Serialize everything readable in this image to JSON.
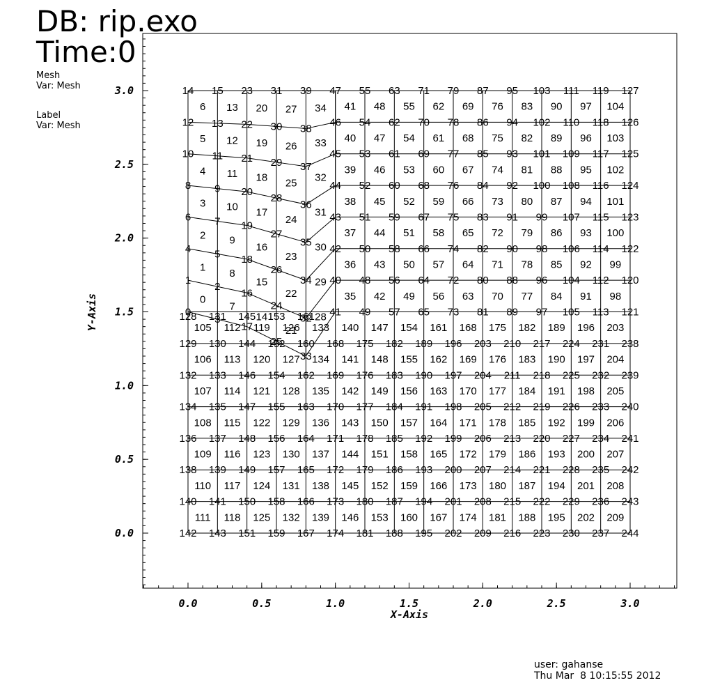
{
  "header": {
    "db": "DB: rip.exo",
    "time": "Time:0"
  },
  "legend": {
    "mesh_title": "Mesh",
    "mesh_var": "Var: Mesh",
    "label_title": "Label",
    "label_var": "Var: Mesh"
  },
  "footer": {
    "user": "user: gahanse",
    "date": "Thu Mar  8 10:15:55 2012"
  },
  "chart_data": {
    "type": "mesh",
    "xlabel": "X-Axis",
    "ylabel": "Y-Axis",
    "xlim": [
      -0.3,
      3.3
    ],
    "ylim": [
      -0.38,
      3.38
    ],
    "x_ticks": [
      0.0,
      0.5,
      1.0,
      1.5,
      2.0,
      2.5,
      3.0
    ],
    "x_tick_labels": [
      "0.0",
      "0.5",
      "1.0",
      "1.5",
      "2.0",
      "2.5",
      "3.0"
    ],
    "y_ticks": [
      0.0,
      0.5,
      1.0,
      1.5,
      2.0,
      2.5,
      3.0
    ],
    "y_tick_labels": [
      "0.0",
      "0.5",
      "1.0",
      "1.5",
      "2.0",
      "2.5",
      "3.0"
    ],
    "blocks": [
      {
        "name": "upper-left",
        "x": [
          0.0,
          0.2,
          0.4,
          0.6,
          0.8,
          1.0
        ],
        "bottom_y": [
          1.5,
          1.45,
          1.4,
          1.3,
          1.2,
          1.5
        ],
        "top_y": 3.0,
        "rows": 7,
        "cell_start": 0,
        "cell_order": "column-major-bottom-up"
      },
      {
        "name": "upper-right",
        "x": [
          1.0,
          1.2,
          1.4,
          1.6,
          1.8,
          2.0,
          2.2,
          2.4,
          2.6,
          2.8,
          3.0
        ],
        "bottom_y": 1.5,
        "top_y": 3.0,
        "rows": 7,
        "cell_start": 35,
        "cell_order": "column-major-bottom-up"
      },
      {
        "name": "lower",
        "x": [
          0.0,
          0.2,
          0.4,
          0.6,
          0.8,
          1.0,
          1.2,
          1.4,
          1.6,
          1.8,
          2.0,
          2.2,
          2.4,
          2.6,
          2.8,
          3.0
        ],
        "bottom_y": 0.0,
        "top_y": 1.5,
        "rows": 7,
        "cell_start": 105,
        "cell_order": "column-major-top-down"
      }
    ],
    "node_columns": [
      {
        "x": 0.0,
        "labels": [
          0,
          1,
          4,
          6,
          8,
          10,
          12,
          14,
          128,
          129,
          132,
          134,
          136,
          138,
          140,
          142
        ]
      },
      {
        "x": 0.2,
        "labels": [
          3,
          2,
          5,
          7,
          9,
          11,
          13,
          15,
          131,
          130,
          133,
          135,
          137,
          139,
          141,
          143
        ]
      },
      {
        "x": 0.4,
        "labels": [
          17,
          16,
          18,
          19,
          20,
          21,
          22,
          23,
          145,
          144,
          146,
          147,
          148,
          149,
          150,
          151
        ]
      },
      {
        "x": 0.6,
        "labels": [
          25,
          24,
          26,
          27,
          28,
          29,
          30,
          31,
          153,
          152,
          154,
          155,
          156,
          157,
          158,
          159
        ]
      },
      {
        "x": 0.8,
        "labels": [
          33,
          32,
          34,
          35,
          36,
          37,
          38,
          39,
          161,
          160,
          162,
          163,
          164,
          165,
          166,
          167
        ]
      },
      {
        "x": 1.0,
        "labels": [
          41,
          40,
          42,
          43,
          44,
          45,
          46,
          47,
          168,
          169,
          170,
          171,
          172,
          173,
          174
        ]
      },
      {
        "x": 1.2,
        "labels": [
          49,
          48,
          50,
          51,
          52,
          53,
          54,
          55,
          175,
          176,
          177,
          178,
          179,
          180,
          181
        ]
      },
      {
        "x": 1.4,
        "labels": [
          57,
          56,
          58,
          59,
          60,
          61,
          62,
          63,
          182,
          183,
          184,
          185,
          186,
          187,
          188
        ]
      },
      {
        "x": 1.6,
        "labels": [
          65,
          64,
          66,
          67,
          68,
          69,
          70,
          71,
          189,
          190,
          191,
          192,
          193,
          194,
          195
        ]
      },
      {
        "x": 1.8,
        "labels": [
          73,
          72,
          74,
          75,
          76,
          77,
          78,
          79,
          196,
          197,
          198,
          199,
          200,
          201,
          202
        ]
      },
      {
        "x": 2.0,
        "labels": [
          81,
          80,
          82,
          83,
          84,
          85,
          86,
          87,
          203,
          204,
          205,
          206,
          207,
          208,
          209
        ]
      },
      {
        "x": 2.2,
        "labels": [
          89,
          88,
          90,
          91,
          92,
          93,
          94,
          95,
          210,
          211,
          212,
          213,
          214,
          215,
          216
        ]
      },
      {
        "x": 2.4,
        "labels": [
          97,
          96,
          98,
          99,
          100,
          101,
          102,
          103,
          217,
          218,
          219,
          220,
          221,
          222,
          223
        ]
      },
      {
        "x": 2.6,
        "labels": [
          105,
          104,
          106,
          107,
          108,
          109,
          110,
          111,
          224,
          225,
          226,
          227,
          228,
          229,
          230
        ]
      },
      {
        "x": 2.8,
        "labels": [
          113,
          112,
          114,
          115,
          116,
          117,
          118,
          119,
          231,
          232,
          233,
          234,
          235,
          236,
          237
        ]
      },
      {
        "x": 3.0,
        "labels": [
          121,
          120,
          122,
          123,
          124,
          125,
          126,
          127,
          238,
          239,
          240,
          241,
          242,
          243,
          244
        ]
      }
    ],
    "grid": false
  }
}
